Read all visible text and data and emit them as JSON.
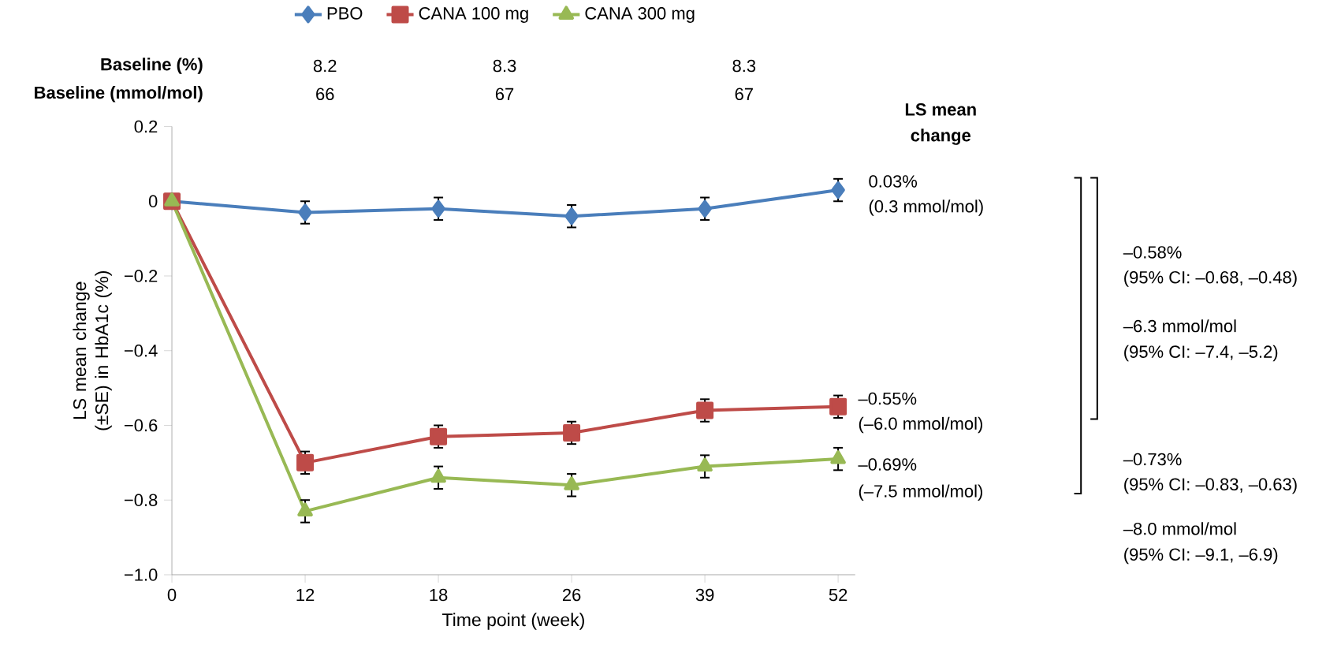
{
  "chart_data": {
    "type": "line",
    "xlabel": "Time point (week)",
    "ylabel": "LS mean change (±SE) in HbA1c (%)",
    "categories": [
      "0",
      "12",
      "18",
      "26",
      "39",
      "52"
    ],
    "series": [
      {
        "name": "PBO",
        "color": "#4a7ebb",
        "marker": "diamond",
        "values": [
          0,
          -0.03,
          -0.02,
          -0.04,
          -0.02,
          0.03
        ],
        "errors": [
          null,
          0.03,
          0.03,
          0.03,
          0.03,
          0.03
        ]
      },
      {
        "name": "CANA 100 mg",
        "color": "#be4b48",
        "marker": "square",
        "values": [
          0,
          -0.7,
          -0.63,
          -0.62,
          -0.56,
          -0.55
        ],
        "errors": [
          null,
          0.03,
          0.03,
          0.03,
          0.03,
          0.03
        ]
      },
      {
        "name": "CANA 300 mg",
        "color": "#98b954",
        "marker": "triangle",
        "values": [
          0,
          -0.83,
          -0.74,
          -0.76,
          -0.71,
          -0.69
        ],
        "errors": [
          null,
          0.03,
          0.03,
          0.03,
          0.03,
          0.03
        ]
      }
    ],
    "ylim": [
      -1.0,
      0.2
    ],
    "yticks": [
      0.2,
      0,
      {
        "value": -0.2,
        "label": "−0.2"
      },
      {
        "value": -0.4,
        "label": "−0.4"
      },
      {
        "value": -0.6,
        "label": "−0.6"
      },
      {
        "value": -0.8,
        "label": "−0.8"
      },
      {
        "value": -1.0,
        "label": "−1.0"
      }
    ],
    "grid": false,
    "legend": "top",
    "line_style": "solid",
    "annotations": [
      "Baseline (%)",
      "8.2",
      "8.3",
      "8.3",
      "Baseline (mmol/mol)",
      "66",
      "67",
      "67",
      "LS mean",
      "change",
      "0.03%",
      "(0.3 mmol/mol)",
      "–0.55%",
      "(–6.0 mmol/mol)",
      "–0.69%",
      "(–7.5 mmol/mol)",
      "–0.58%",
      "(95% CI: –0.68, –0.48)",
      "–6.3 mmol/mol",
      "(95% CI: –7.4, –5.2)",
      "–0.73%",
      "(95% CI: –0.83, –0.63)",
      "–8.0 mmol/mol",
      "(95% CI: –9.1, –6.9)"
    ]
  }
}
